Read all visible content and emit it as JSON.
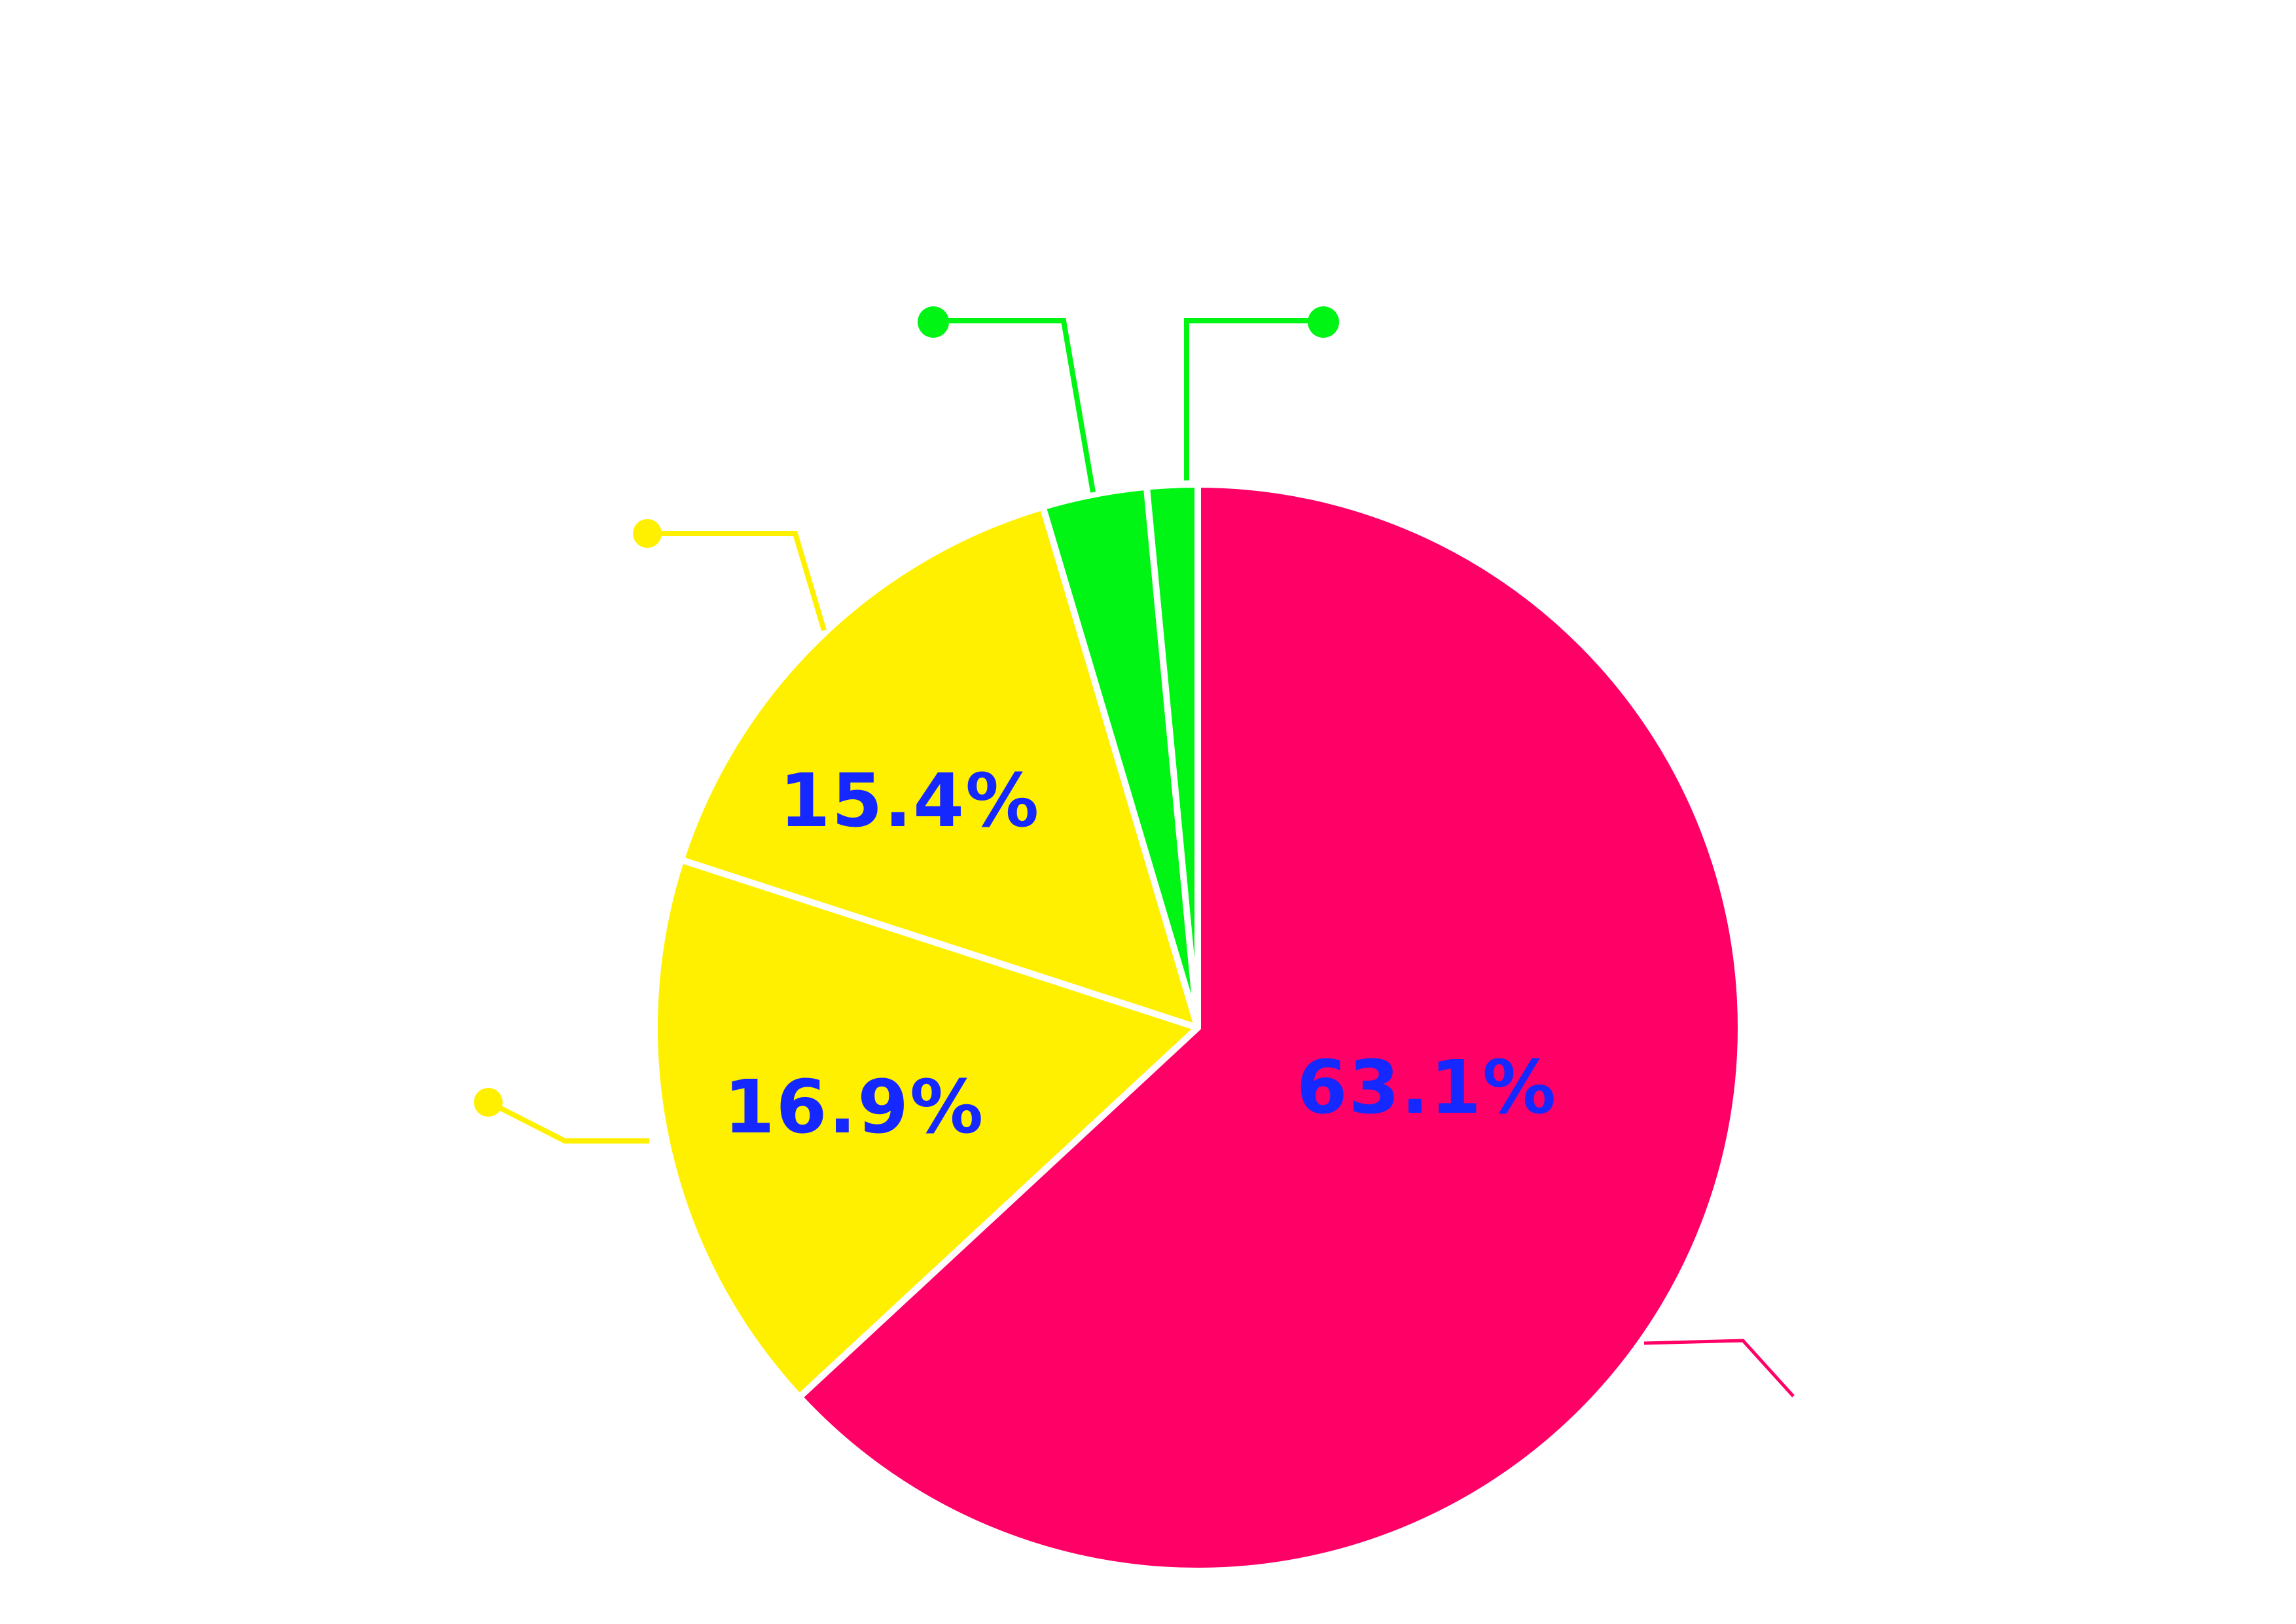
{
  "chart_data": {
    "type": "pie",
    "title": "",
    "start_angle_deg": 0,
    "direction": "clockwise",
    "label_color": "#1428ff",
    "slices": [
      {
        "value": 63.1,
        "label": "63.1%",
        "color": "#ff0066",
        "show_label": true
      },
      {
        "value": 16.9,
        "label": "16.9%",
        "color": "#fff000",
        "show_label": true
      },
      {
        "value": 15.4,
        "label": "15.4%",
        "color": "#fff000",
        "show_label": true
      },
      {
        "value": 3.1,
        "label": "",
        "color": "#00f514",
        "show_label": false
      },
      {
        "value": 1.5,
        "label": "",
        "color": "#00f514",
        "show_label": false
      }
    ],
    "legend": "none",
    "grid": false
  }
}
